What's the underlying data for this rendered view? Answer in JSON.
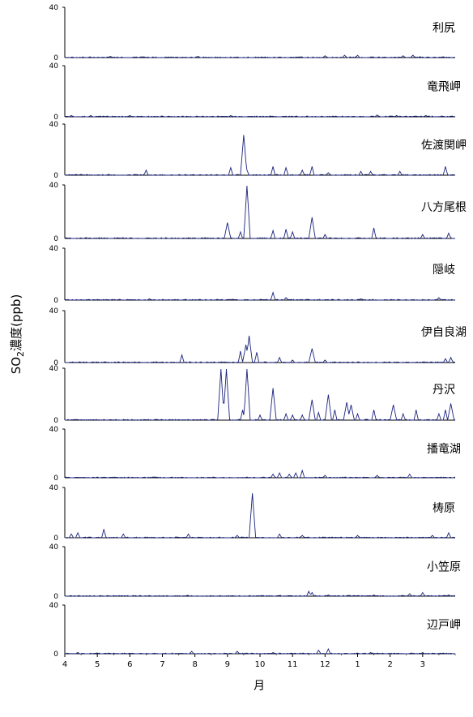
{
  "chart_data": {
    "type": "line",
    "xlabel": "月",
    "ylabel_main": "SO",
    "ylabel_sub": "2",
    "ylabel_rest": "濃度(ppb)",
    "ylim": [
      0,
      40
    ],
    "yticks": [
      "0",
      "40"
    ],
    "month_ticks": [
      "4",
      "5",
      "6",
      "7",
      "8",
      "9",
      "10",
      "11",
      "12",
      "1",
      "2",
      "3"
    ],
    "line_color": "#1a237e",
    "panels": [
      {
        "name": "利尻",
        "spikes": [
          [
            1.4,
            1
          ],
          [
            4.1,
            1
          ],
          [
            8.0,
            1.5
          ],
          [
            8.6,
            2
          ],
          [
            9.0,
            2
          ],
          [
            10.4,
            1.5
          ],
          [
            10.7,
            2
          ]
        ]
      },
      {
        "name": "竜飛岬",
        "spikes": [
          [
            0.2,
            1
          ],
          [
            0.8,
            1
          ],
          [
            2.0,
            1
          ],
          [
            5.1,
            1
          ],
          [
            9.6,
            1.5
          ],
          [
            10.2,
            1
          ],
          [
            11.1,
            1
          ]
        ]
      },
      {
        "name": "佐渡関岬",
        "spikes": [
          [
            2.5,
            4
          ],
          [
            5.1,
            6
          ],
          [
            5.5,
            32
          ],
          [
            5.6,
            4
          ],
          [
            6.4,
            7
          ],
          [
            6.8,
            6
          ],
          [
            7.3,
            4
          ],
          [
            7.6,
            7
          ],
          [
            8.1,
            2
          ],
          [
            9.1,
            3
          ],
          [
            9.4,
            3
          ],
          [
            10.3,
            3
          ],
          [
            11.7,
            7
          ]
        ]
      },
      {
        "name": "八方尾根",
        "spikes": [
          [
            5.0,
            12
          ],
          [
            5.4,
            5
          ],
          [
            5.6,
            40
          ],
          [
            6.4,
            6
          ],
          [
            6.8,
            7
          ],
          [
            7.0,
            5
          ],
          [
            7.6,
            16
          ],
          [
            8.0,
            3
          ],
          [
            9.5,
            8
          ],
          [
            11.0,
            3
          ],
          [
            11.8,
            4
          ]
        ]
      },
      {
        "name": "隠岐",
        "spikes": [
          [
            2.6,
            1
          ],
          [
            6.4,
            6
          ],
          [
            6.8,
            2
          ],
          [
            9.1,
            1
          ],
          [
            11.5,
            2
          ]
        ]
      },
      {
        "name": "伊自良湖",
        "spikes": [
          [
            3.6,
            6
          ],
          [
            5.4,
            9
          ],
          [
            5.55,
            14
          ],
          [
            5.65,
            21
          ],
          [
            5.9,
            8
          ],
          [
            6.6,
            4
          ],
          [
            7.0,
            2
          ],
          [
            7.6,
            11
          ],
          [
            8.0,
            2
          ],
          [
            11.7,
            3
          ],
          [
            11.85,
            4
          ]
        ]
      },
      {
        "name": "丹沢",
        "spikes": [
          [
            4.8,
            40
          ],
          [
            4.95,
            40
          ],
          [
            5.45,
            8
          ],
          [
            5.6,
            40
          ],
          [
            6.0,
            4
          ],
          [
            6.4,
            25
          ],
          [
            6.8,
            5
          ],
          [
            7.0,
            4
          ],
          [
            7.3,
            4
          ],
          [
            7.6,
            16
          ],
          [
            7.8,
            6
          ],
          [
            8.1,
            20
          ],
          [
            8.3,
            8
          ],
          [
            8.65,
            14
          ],
          [
            8.8,
            12
          ],
          [
            9.0,
            5
          ],
          [
            9.5,
            8
          ],
          [
            10.1,
            12
          ],
          [
            10.4,
            5
          ],
          [
            10.8,
            8
          ],
          [
            11.5,
            5
          ],
          [
            11.7,
            8
          ],
          [
            11.85,
            13
          ]
        ]
      },
      {
        "name": "播竜湖",
        "spikes": [
          [
            6.4,
            3
          ],
          [
            6.6,
            4
          ],
          [
            6.9,
            3
          ],
          [
            7.1,
            4
          ],
          [
            7.3,
            6
          ],
          [
            8.0,
            2
          ],
          [
            9.6,
            2
          ],
          [
            10.6,
            3
          ]
        ]
      },
      {
        "name": "梼原",
        "spikes": [
          [
            0.2,
            3
          ],
          [
            0.4,
            4
          ],
          [
            1.2,
            7
          ],
          [
            1.8,
            3
          ],
          [
            3.8,
            3
          ],
          [
            5.3,
            2
          ],
          [
            5.75,
            36
          ],
          [
            6.6,
            3
          ],
          [
            7.3,
            2
          ],
          [
            9.0,
            2
          ],
          [
            11.3,
            2
          ],
          [
            11.8,
            4
          ]
        ]
      },
      {
        "name": "小笠原",
        "spikes": [
          [
            7.5,
            4
          ],
          [
            7.6,
            3
          ],
          [
            8.1,
            1
          ],
          [
            9.5,
            1
          ],
          [
            10.6,
            2
          ],
          [
            11.0,
            3
          ],
          [
            11.8,
            1
          ]
        ]
      },
      {
        "name": "辺戸岬",
        "spikes": [
          [
            0.4,
            1
          ],
          [
            3.9,
            2
          ],
          [
            5.3,
            2
          ],
          [
            6.4,
            1
          ],
          [
            7.8,
            3
          ],
          [
            8.1,
            4
          ],
          [
            9.4,
            1
          ],
          [
            11.0,
            1
          ]
        ]
      }
    ]
  }
}
